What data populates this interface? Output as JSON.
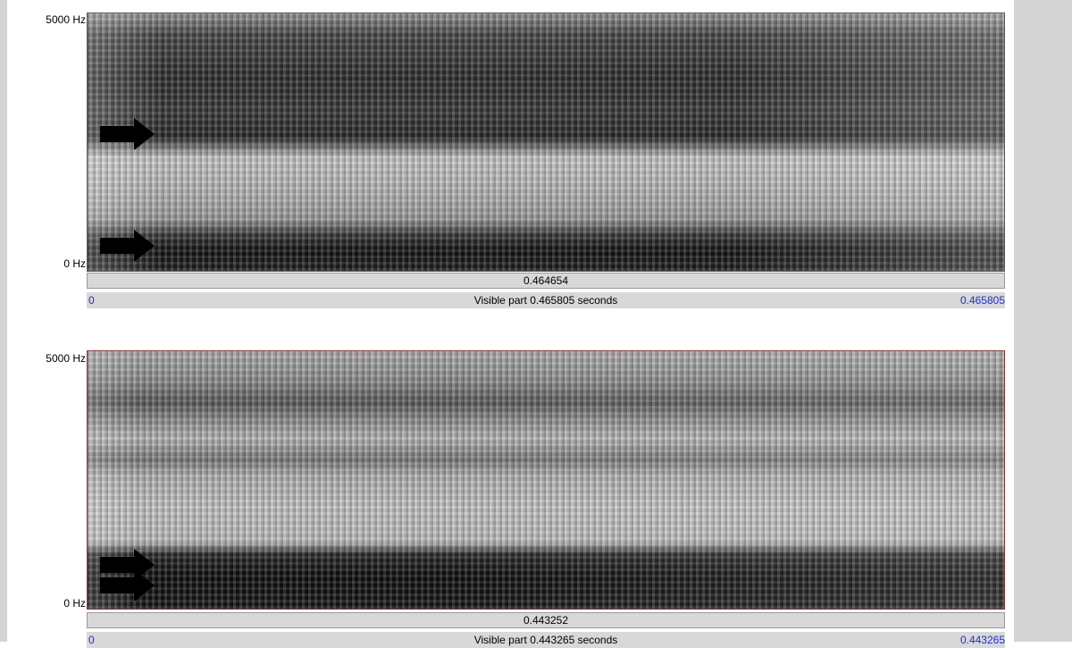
{
  "panels": [
    {
      "freq_top": "5000 Hz",
      "freq_bottom": "0 Hz",
      "selection": "0.464654",
      "start": "0",
      "visible": "Visible part 0.465805 seconds",
      "end": "0.465805"
    },
    {
      "freq_top": "5000 Hz",
      "freq_bottom": "0 Hz",
      "selection": "0.443252",
      "start": "0",
      "visible": "Visible part 0.443265 seconds",
      "end": "0.443265"
    }
  ]
}
